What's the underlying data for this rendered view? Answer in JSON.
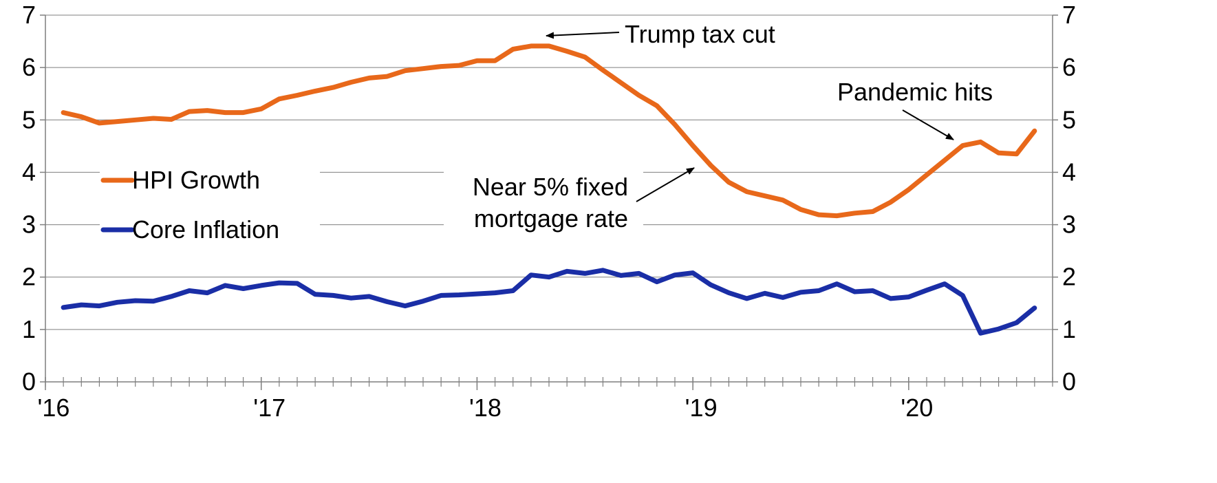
{
  "chart_data": {
    "type": "line",
    "title": "",
    "xlabel": "",
    "ylabel": "",
    "ylim": [
      0,
      7
    ],
    "yticks": [
      "0",
      "1",
      "2",
      "3",
      "4",
      "5",
      "6",
      "7"
    ],
    "y_axis_right": true,
    "xlim": [
      2016.0,
      2020.6667
    ],
    "xtick_labels": [
      {
        "label": "'16",
        "x": 2016.0
      },
      {
        "label": "'17",
        "x": 2017.0
      },
      {
        "label": "'18",
        "x": 2018.0
      },
      {
        "label": "'19",
        "x": 2019.0
      },
      {
        "label": "'20",
        "x": 2020.0
      }
    ],
    "grid": true,
    "legend": "left",
    "series": [
      {
        "name": "HPI Growth",
        "color": "#e8681a",
        "x": [
          2016.0833,
          2016.1667,
          2016.25,
          2016.3333,
          2016.4167,
          2016.5,
          2016.5833,
          2016.6667,
          2016.75,
          2016.8333,
          2016.9167,
          2017.0,
          2017.0833,
          2017.1667,
          2017.25,
          2017.3333,
          2017.4167,
          2017.5,
          2017.5833,
          2017.6667,
          2017.75,
          2017.8333,
          2017.9167,
          2018.0,
          2018.0833,
          2018.1667,
          2018.25,
          2018.3333,
          2018.4167,
          2018.5,
          2018.5833,
          2018.6667,
          2018.75,
          2018.8333,
          2018.9167,
          2019.0,
          2019.0833,
          2019.1667,
          2019.25,
          2019.3333,
          2019.4167,
          2019.5,
          2019.5833,
          2019.6667,
          2019.75,
          2019.8333,
          2019.9167,
          2020.0,
          2020.0833,
          2020.1667,
          2020.25,
          2020.3333,
          2020.4167,
          2020.5,
          2020.5833
        ],
        "values": [
          5.14,
          5.06,
          4.94,
          4.97,
          5.0,
          5.03,
          5.01,
          5.16,
          5.18,
          5.14,
          5.14,
          5.21,
          5.4,
          5.47,
          5.55,
          5.62,
          5.72,
          5.8,
          5.83,
          5.94,
          5.98,
          6.02,
          6.04,
          6.13,
          6.13,
          6.35,
          6.41,
          6.41,
          6.31,
          6.2,
          5.95,
          5.71,
          5.47,
          5.27,
          4.91,
          4.51,
          4.13,
          3.81,
          3.63,
          3.55,
          3.47,
          3.29,
          3.19,
          3.17,
          3.22,
          3.25,
          3.43,
          3.67,
          3.95,
          4.23,
          4.51,
          4.58,
          4.37,
          4.35,
          4.79
        ]
      },
      {
        "name": "Core Inflation",
        "color": "#1a2ea6",
        "x": [
          2016.0833,
          2016.1667,
          2016.25,
          2016.3333,
          2016.4167,
          2016.5,
          2016.5833,
          2016.6667,
          2016.75,
          2016.8333,
          2016.9167,
          2017.0,
          2017.0833,
          2017.1667,
          2017.25,
          2017.3333,
          2017.4167,
          2017.5,
          2017.5833,
          2017.6667,
          2017.75,
          2017.8333,
          2017.9167,
          2018.0,
          2018.0833,
          2018.1667,
          2018.25,
          2018.3333,
          2018.4167,
          2018.5,
          2018.5833,
          2018.6667,
          2018.75,
          2018.8333,
          2018.9167,
          2019.0,
          2019.0833,
          2019.1667,
          2019.25,
          2019.3333,
          2019.4167,
          2019.5,
          2019.5833,
          2019.6667,
          2019.75,
          2019.8333,
          2019.9167,
          2020.0,
          2020.0833,
          2020.1667,
          2020.25,
          2020.3333,
          2020.4167,
          2020.5,
          2020.5833
        ],
        "values": [
          1.42,
          1.47,
          1.45,
          1.52,
          1.55,
          1.54,
          1.63,
          1.74,
          1.7,
          1.84,
          1.78,
          1.84,
          1.89,
          1.88,
          1.67,
          1.65,
          1.6,
          1.63,
          1.53,
          1.45,
          1.54,
          1.65,
          1.66,
          1.68,
          1.7,
          1.74,
          2.04,
          2.0,
          2.11,
          2.07,
          2.13,
          2.03,
          2.07,
          1.91,
          2.04,
          2.08,
          1.85,
          1.7,
          1.59,
          1.69,
          1.61,
          1.71,
          1.74,
          1.87,
          1.72,
          1.74,
          1.59,
          1.62,
          1.75,
          1.87,
          1.65,
          0.93,
          1.01,
          1.13,
          1.41
        ]
      }
    ],
    "annotations": [
      {
        "text": "Trump tax cut",
        "arrow_to": {
          "x": 2018.3,
          "y": 6.6
        }
      },
      {
        "text": "Pandemic hits",
        "arrow_to": {
          "x": 2020.0,
          "y": 4.8
        }
      },
      {
        "lines": [
          "Near 5% fixed",
          "mortgage rate"
        ],
        "arrow_to": {
          "x": 2018.9583,
          "y": 4.42
        }
      }
    ]
  }
}
